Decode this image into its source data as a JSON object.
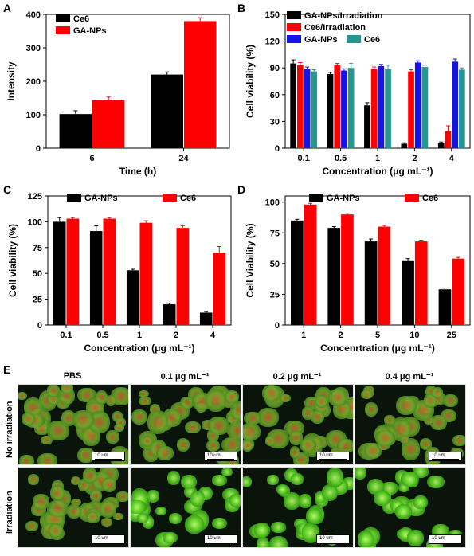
{
  "panels": {
    "A": {
      "letter": "A"
    },
    "B": {
      "letter": "B"
    },
    "C": {
      "letter": "C"
    },
    "D": {
      "letter": "D"
    },
    "E": {
      "letter": "E"
    }
  },
  "chart_data": [
    {
      "id": "A",
      "type": "bar",
      "categories": [
        "6",
        "24"
      ],
      "series": [
        {
          "name": "Ce6",
          "color": "#000000",
          "values": [
            102,
            220
          ],
          "errors": [
            10,
            8
          ]
        },
        {
          "name": "GA-NPs",
          "color": "#ff0000",
          "values": [
            143,
            380
          ],
          "errors": [
            10,
            10
          ]
        }
      ],
      "xlabel": "Time (h)",
      "ylabel": "Intensity",
      "ylim": [
        0,
        400
      ],
      "yticks": [
        "0",
        "100",
        "200",
        "300",
        "400"
      ],
      "legend": "top-left"
    },
    {
      "id": "B",
      "type": "bar",
      "categories": [
        "0.1",
        "0.5",
        "1",
        "2",
        "4"
      ],
      "series": [
        {
          "name": "GA-NPs/Irradiation",
          "color": "#000000",
          "values": [
            95,
            83,
            48,
            5,
            6
          ],
          "errors": [
            4,
            2,
            3,
            1,
            1
          ]
        },
        {
          "name": "Ce6/Irradiation",
          "color": "#ff0000",
          "values": [
            93,
            93,
            89,
            86,
            19
          ],
          "errors": [
            3,
            2,
            2,
            2,
            6
          ]
        },
        {
          "name": "GA-NPs",
          "color": "#1414e6",
          "values": [
            89,
            87,
            92,
            96,
            97
          ],
          "errors": [
            2,
            2,
            2,
            2,
            3
          ]
        },
        {
          "name": "Ce6",
          "color": "#27968f",
          "values": [
            86,
            90,
            89,
            91,
            88
          ],
          "errors": [
            2,
            5,
            4,
            2,
            2
          ]
        }
      ],
      "xlabel": "Concentration (μg mL⁻¹)",
      "ylabel": "Cell viability (%)",
      "ylim": [
        0,
        150
      ],
      "yticks": [
        "0",
        "30",
        "60",
        "90",
        "120",
        "150"
      ],
      "legend": "top"
    },
    {
      "id": "C",
      "type": "bar",
      "categories": [
        "0.1",
        "0.5",
        "1",
        "2",
        "4"
      ],
      "series": [
        {
          "name": "GA-NPs",
          "color": "#000000",
          "values": [
            100,
            91,
            53,
            20,
            12
          ],
          "errors": [
            4,
            5,
            1,
            1,
            1
          ]
        },
        {
          "name": "Ce6",
          "color": "#ff0000",
          "values": [
            103,
            103,
            99,
            94,
            70
          ],
          "errors": [
            1,
            1,
            2,
            2,
            6
          ]
        }
      ],
      "xlabel": "Concentration (μg mL⁻¹)",
      "ylabel": "Cell viability (%)",
      "ylim": [
        0,
        125
      ],
      "yticks": [
        "0",
        "25",
        "50",
        "75",
        "100",
        "125"
      ],
      "legend": "top"
    },
    {
      "id": "D",
      "type": "bar",
      "categories": [
        "1",
        "2",
        "5",
        "10",
        "25"
      ],
      "series": [
        {
          "name": "GA-NPs",
          "color": "#000000",
          "values": [
            85,
            79,
            68,
            52,
            29
          ],
          "errors": [
            1,
            1,
            2,
            2,
            1
          ]
        },
        {
          "name": "Ce6",
          "color": "#ff0000",
          "values": [
            98,
            90,
            80,
            68,
            54
          ],
          "errors": [
            1,
            1,
            1,
            1,
            1
          ]
        }
      ],
      "xlabel": "Concenrtration (μg mL⁻¹)",
      "ylabel": "Cell Viability (%)",
      "ylim": [
        0,
        105
      ],
      "yticks": [
        "0",
        "25",
        "50",
        "75",
        "100"
      ],
      "legend": "top"
    }
  ],
  "microscopy": {
    "columns": [
      "PBS",
      "0.1 μg mL⁻¹",
      "0.2 μg mL⁻¹",
      "0.4 μg mL⁻¹"
    ],
    "rows": [
      "No irradiation",
      "Irradiation"
    ],
    "scale_label": "10 um"
  }
}
